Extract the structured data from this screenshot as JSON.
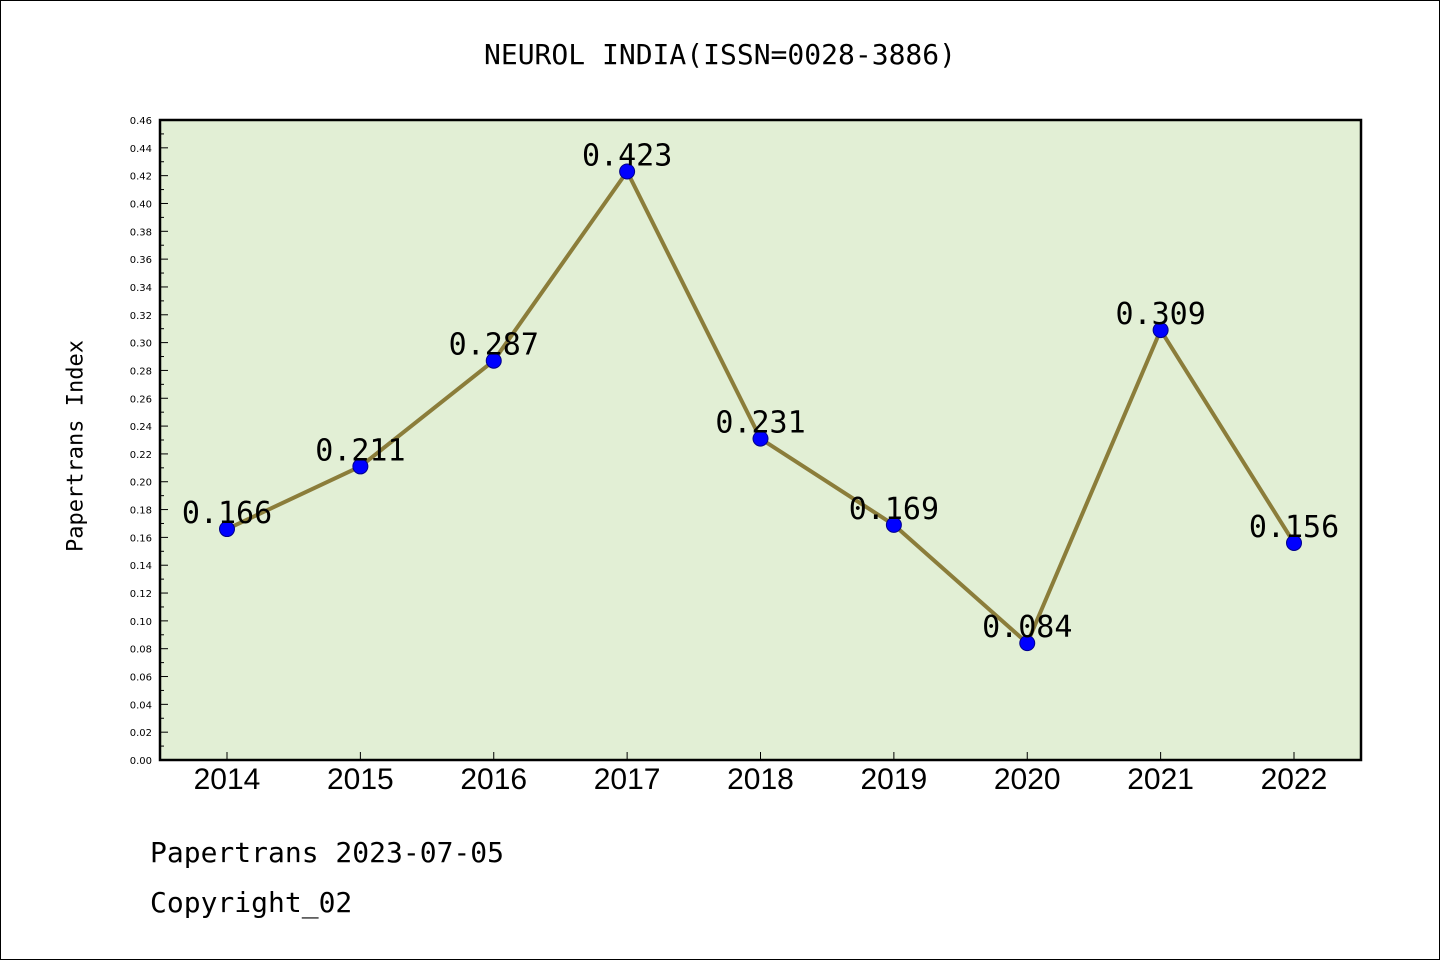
{
  "chart_data": {
    "type": "line",
    "title": "NEUROL INDIA(ISSN=0028-3886)",
    "xlabel": "",
    "ylabel": "Papertrans Index",
    "categories": [
      "2014",
      "2015",
      "2016",
      "2017",
      "2018",
      "2019",
      "2020",
      "2021",
      "2022"
    ],
    "series": [
      {
        "values": [
          0.166,
          0.211,
          0.287,
          0.423,
          0.231,
          0.169,
          0.084,
          0.309,
          0.156
        ],
        "data_labels": [
          "0.166",
          "0.211",
          "0.287",
          "0.423",
          "0.231",
          "0.169",
          "0.084",
          "0.309",
          "0.156"
        ],
        "line_color": "#8b7d3a",
        "marker_color": "#0000ff"
      }
    ],
    "ylim": [
      0,
      0.46
    ],
    "y_ticks": [
      "0.00",
      "0.02",
      "0.04",
      "0.06",
      "0.08",
      "0.10",
      "0.12",
      "0.14",
      "0.16",
      "0.18",
      "0.20",
      "0.22",
      "0.24",
      "0.26",
      "0.28",
      "0.30",
      "0.32",
      "0.34",
      "0.36",
      "0.38",
      "0.40",
      "0.42",
      "0.44",
      "0.46"
    ],
    "plot_background": "#e2efd5",
    "grid": false,
    "legend": "none"
  },
  "footer": {
    "date_line": "Papertrans 2023-07-05",
    "copyright": "Copyright_02"
  }
}
